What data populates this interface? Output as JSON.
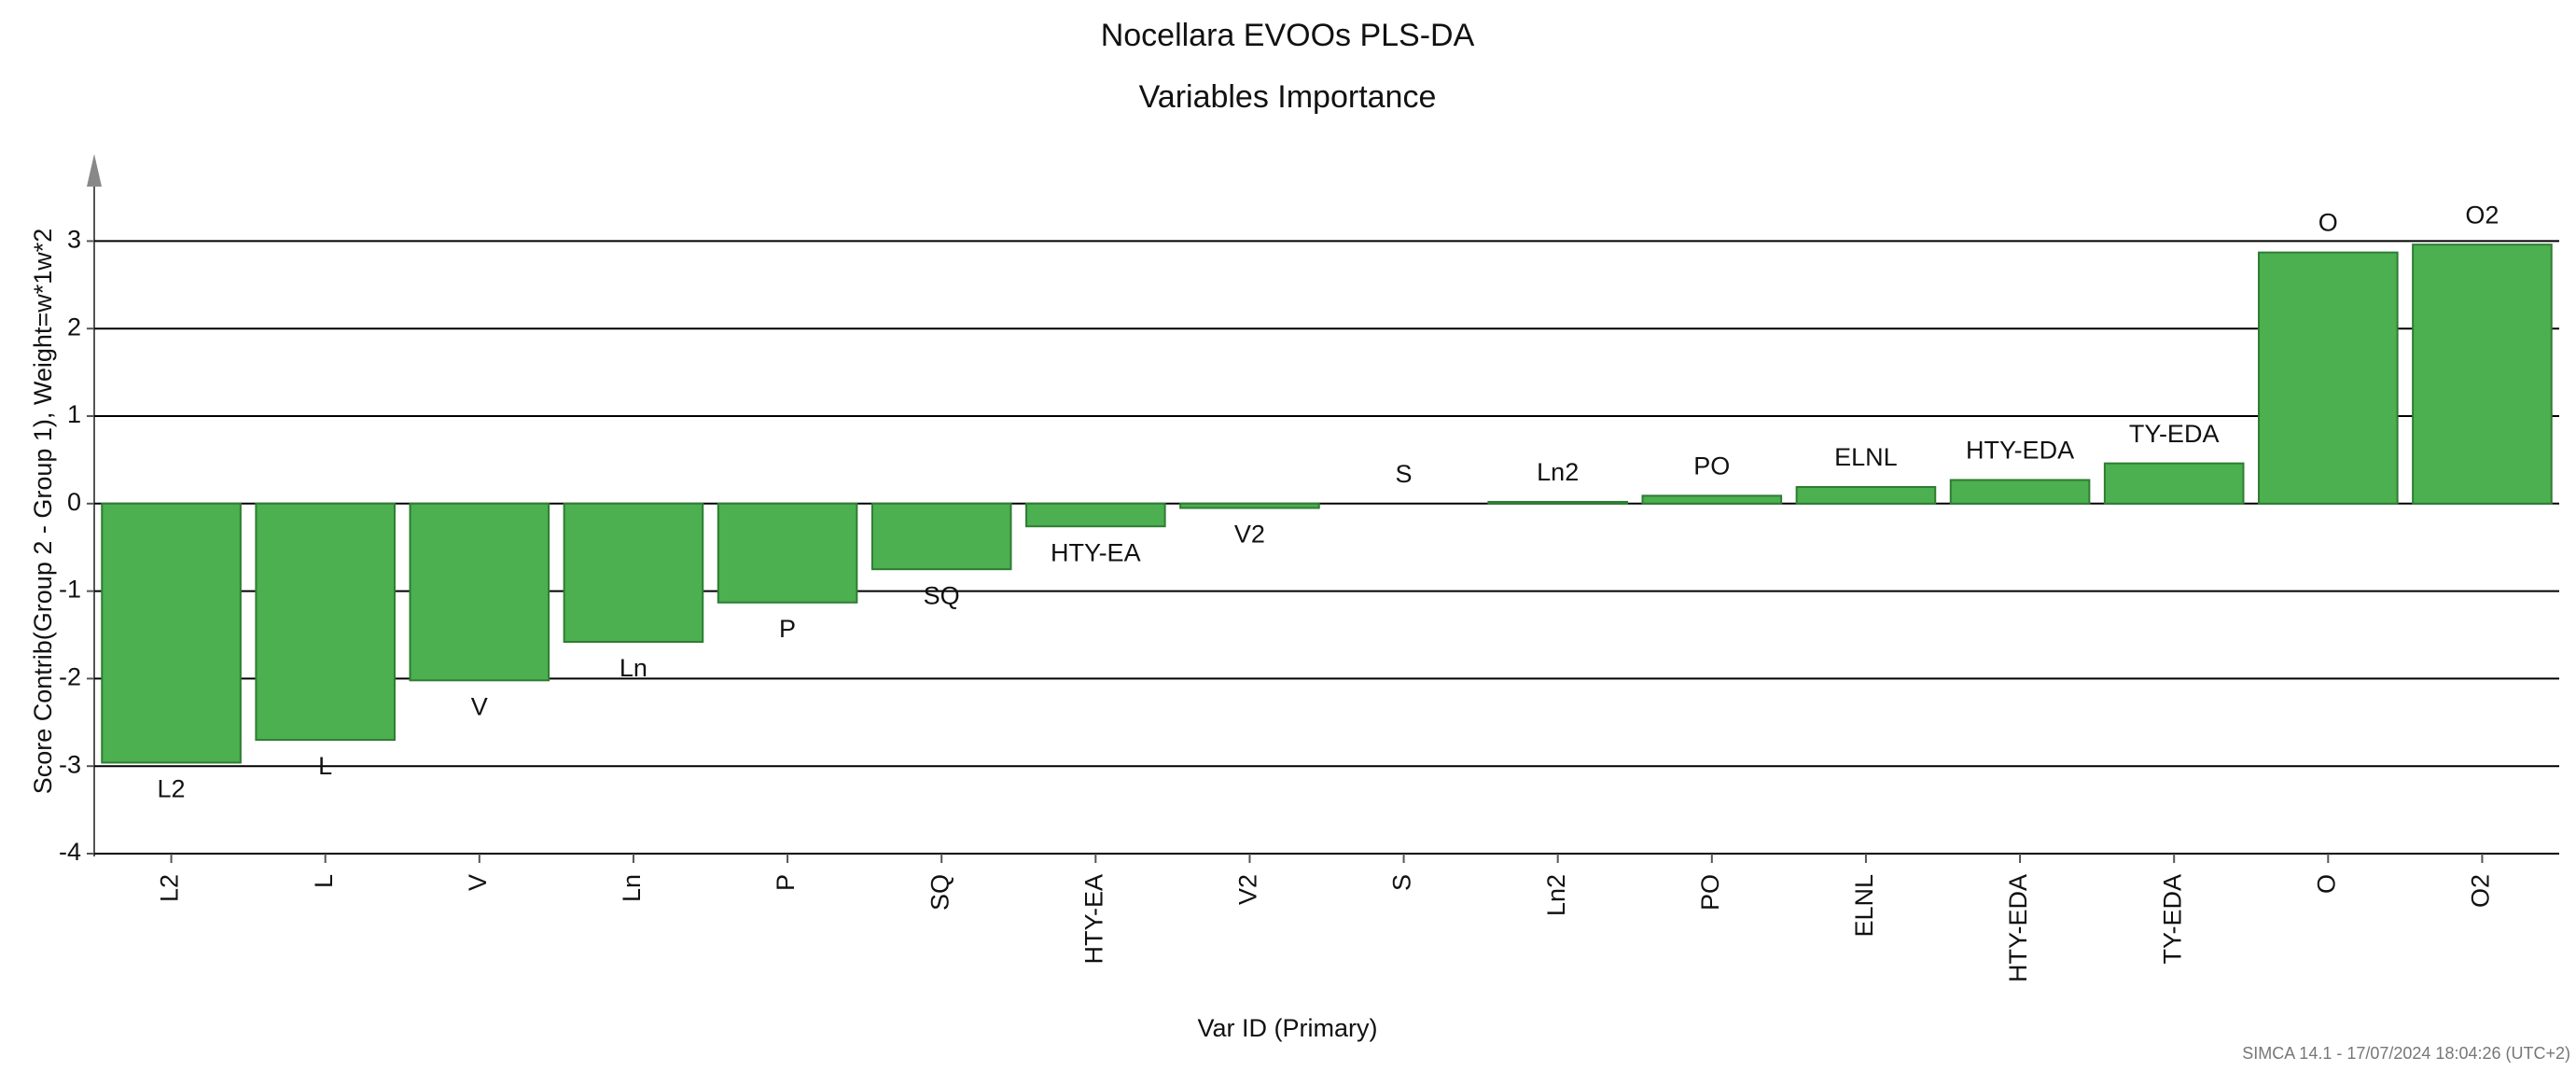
{
  "chart_data": {
    "type": "bar",
    "title": "Nocellara EVOOs PLS-DA",
    "subtitle": "Variables Importance",
    "x_label": "Var ID (Primary)",
    "y_label": "Score Contrib(Group 2 - Group 1), Weight=w*1w*2",
    "footer": "SIMCA 14.1 - 17/07/2024 18:04:26 (UTC+2)",
    "categories": [
      "L2",
      "L",
      "V",
      "Ln",
      "P",
      "SQ",
      "HTY-EA",
      "V2",
      "S",
      "Ln2",
      "PO",
      "ELNL",
      "HTY-EDA",
      "TY-EDA",
      "O",
      "O2"
    ],
    "values": [
      -2.96,
      -2.7,
      -2.02,
      -1.58,
      -1.13,
      -0.75,
      -0.26,
      -0.05,
      0,
      0.02,
      0.09,
      0.19,
      0.27,
      0.46,
      2.87,
      2.96
    ],
    "color": "#4caf50",
    "ylim": [
      -4,
      3.9
    ],
    "yticks": [
      -4,
      -3,
      -2,
      -1,
      0,
      1,
      2,
      3
    ],
    "grid": true
  }
}
